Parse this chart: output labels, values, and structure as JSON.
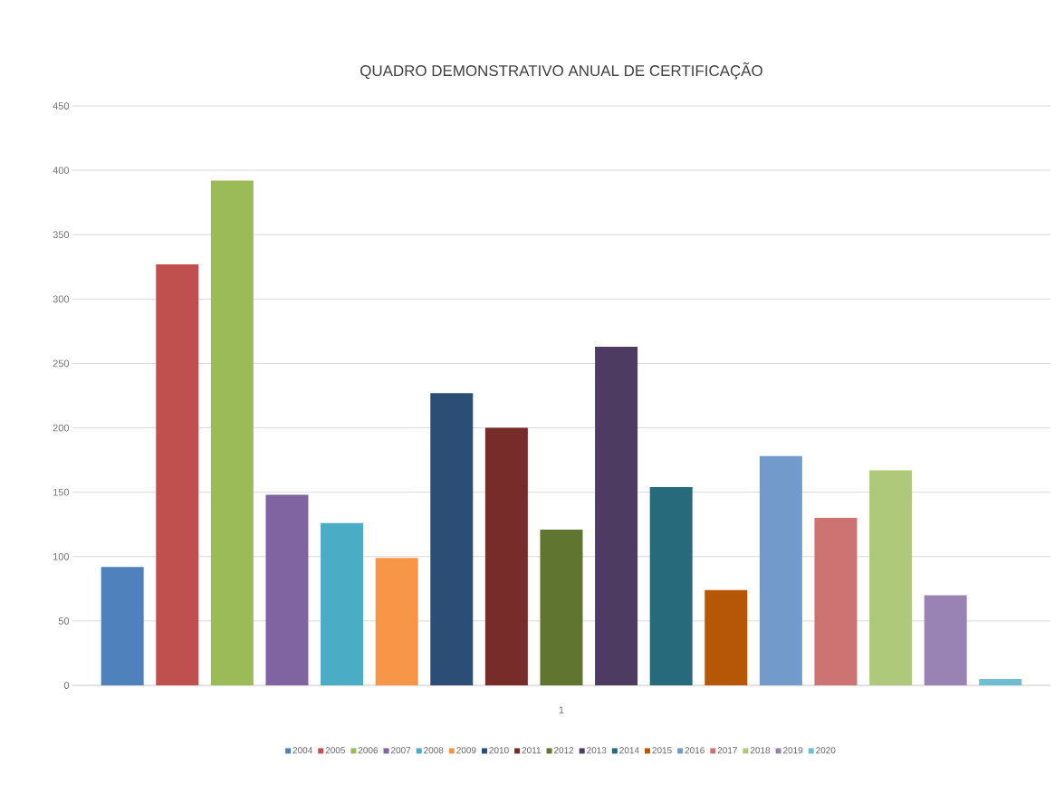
{
  "chart_data": {
    "type": "bar",
    "title": "QUADRO DEMONSTRATIVO ANUAL DE CERTIFICAÇÃO",
    "categories": [
      "1"
    ],
    "series": [
      {
        "name": "2004",
        "color": "#4f81bd",
        "values": [
          92
        ]
      },
      {
        "name": "2005",
        "color": "#c0504d",
        "values": [
          327
        ]
      },
      {
        "name": "2006",
        "color": "#9bbb59",
        "values": [
          392
        ]
      },
      {
        "name": "2007",
        "color": "#8064a2",
        "values": [
          148
        ]
      },
      {
        "name": "2008",
        "color": "#4bacc6",
        "values": [
          126
        ]
      },
      {
        "name": "2009",
        "color": "#f79646",
        "values": [
          99
        ]
      },
      {
        "name": "2010",
        "color": "#2c4d75",
        "values": [
          227
        ]
      },
      {
        "name": "2011",
        "color": "#772c2a",
        "values": [
          200
        ]
      },
      {
        "name": "2012",
        "color": "#5f7530",
        "values": [
          121
        ]
      },
      {
        "name": "2013",
        "color": "#4d3b62",
        "values": [
          263
        ]
      },
      {
        "name": "2014",
        "color": "#276a7c",
        "values": [
          154
        ]
      },
      {
        "name": "2015",
        "color": "#b65708",
        "values": [
          74
        ]
      },
      {
        "name": "2016",
        "color": "#729aca",
        "values": [
          178
        ]
      },
      {
        "name": "2017",
        "color": "#cd7371",
        "values": [
          130
        ]
      },
      {
        "name": "2018",
        "color": "#afc97a",
        "values": [
          167
        ]
      },
      {
        "name": "2019",
        "color": "#9983b5",
        "values": [
          70
        ]
      },
      {
        "name": "2020",
        "color": "#6fbdd1",
        "values": [
          5
        ]
      }
    ],
    "ylim": [
      0,
      450
    ],
    "yticks": [
      0,
      50,
      100,
      150,
      200,
      250,
      300,
      350,
      400,
      450
    ],
    "grid": "y",
    "legend": "bottom"
  }
}
